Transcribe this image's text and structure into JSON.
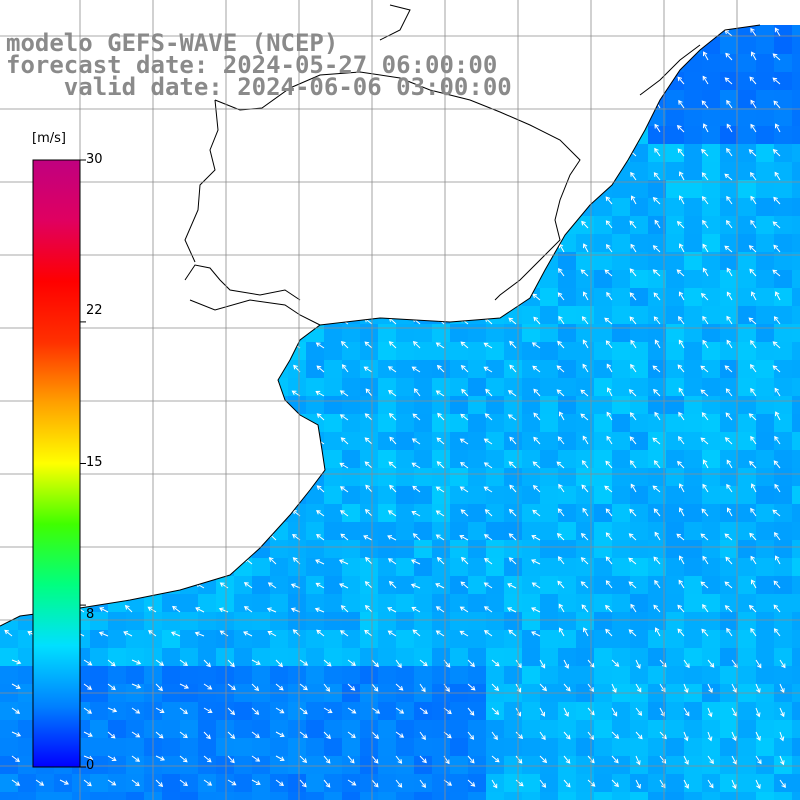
{
  "title": {
    "line1": "modelo GEFS-WAVE (NCEP)",
    "line2": "forecast date: 2024-05-27 06:00:00",
    "line3": "    valid date: 2024-06-06 03:00:00"
  },
  "colorbar": {
    "unit": "[m/s]",
    "min": 0,
    "max": 30,
    "ticks": [
      "30",
      "22",
      "15",
      "8",
      "0"
    ],
    "tick_values": [
      30,
      22,
      15,
      8,
      0
    ],
    "colors": [
      "#0000ff",
      "#0080ff",
      "#00e0ff",
      "#00ff80",
      "#40ff00",
      "#ffff00",
      "#ffa000",
      "#ff3000",
      "#ff0000",
      "#e00060",
      "#c00080"
    ]
  },
  "map": {
    "variable": "wind speed and direction",
    "land_color": "#ffffff",
    "coast_color": "#000000",
    "grid_color": "#8c8c8c"
  }
}
